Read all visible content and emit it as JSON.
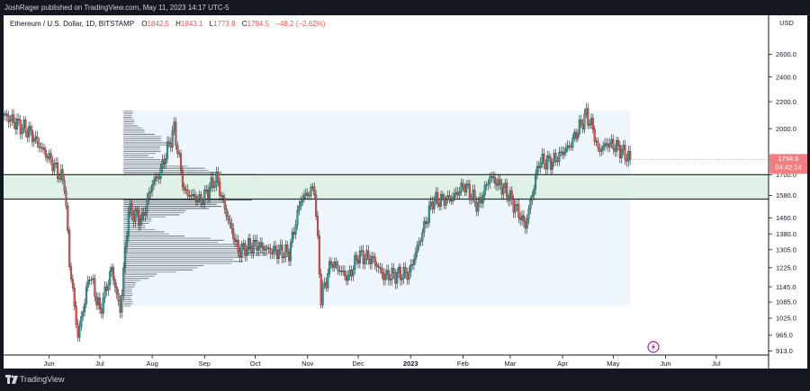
{
  "header": {
    "publisher_line": "JoshRager published on TradingView.com, May 11, 2023 14:17 UTC-5"
  },
  "footer": {
    "brand": "TradingView"
  },
  "legend": {
    "symbol": "Ethereum / U.S. Dollar, 1D, BITSTAMP",
    "open_label": "O",
    "open": "1842.5",
    "high_label": "H",
    "high": "1843.1",
    "low_label": "L",
    "low": "1773.8",
    "close_label": "C",
    "close": "1794.5",
    "change": "−48.2 (−2.62%)"
  },
  "price_badge": {
    "price": "1794.5",
    "countdown": "04:42:14"
  },
  "colors": {
    "up": "#26a69a",
    "down": "#ef5350",
    "zone_fill": "#e0f2e7",
    "zone_line": "#2b3a2f",
    "range_fill": "#eef6fc",
    "badge": "#f77c80",
    "lightning": "#9c27b0"
  },
  "icons": {
    "lightning": "lightning-icon",
    "logo": "tradingview-logo-icon"
  },
  "chart_data": {
    "type": "candlestick",
    "currency": "USD",
    "y_ticks": [
      "2600.0",
      "2400.0",
      "2200.0",
      "2000.0",
      "1700.0",
      "1580.0",
      "1460.0",
      "1380.0",
      "1305.0",
      "1225.0",
      "1145.0",
      "1085.0",
      "1025.0",
      "965.0",
      "913.0"
    ],
    "y_tick_values": [
      2600,
      2400,
      2200,
      2000,
      1700,
      1580,
      1460,
      1380,
      1305,
      1225,
      1145,
      1085,
      1025,
      965,
      913
    ],
    "x_ticks": [
      "Jun",
      "Jul",
      "Aug",
      "Sep",
      "Oct",
      "Nov",
      "Dec",
      "2023",
      "Feb",
      "Mar",
      "Apr",
      "May",
      "Jun",
      "Jul"
    ],
    "x_tick_dates": [
      "2022-06-01",
      "2022-07-01",
      "2022-08-01",
      "2022-09-01",
      "2022-10-01",
      "2022-11-01",
      "2022-12-01",
      "2023-01-01",
      "2023-02-01",
      "2023-03-01",
      "2023-04-01",
      "2023-05-01",
      "2023-06-01",
      "2023-07-01"
    ],
    "x_range": [
      "2022-05-05",
      "2023-08-01"
    ],
    "y_scale": "log",
    "support_zone": [
      1560,
      1700
    ],
    "volume_profile_range": {
      "from": "2022-07-15",
      "to": "2023-05-11",
      "low": 1070,
      "high": 2130
    },
    "last_price": 1794.5,
    "anchors": [
      {
        "date": "2022-05-05",
        "price": 2100
      },
      {
        "date": "2022-05-20",
        "price": 1980
      },
      {
        "date": "2022-06-01",
        "price": 1800
      },
      {
        "date": "2022-06-10",
        "price": 1650
      },
      {
        "date": "2022-06-13",
        "price": 1250
      },
      {
        "date": "2022-06-18",
        "price": 960
      },
      {
        "date": "2022-06-25",
        "price": 1200
      },
      {
        "date": "2022-07-01",
        "price": 1050
      },
      {
        "date": "2022-07-08",
        "price": 1220
      },
      {
        "date": "2022-07-13",
        "price": 1050
      },
      {
        "date": "2022-07-18",
        "price": 1500
      },
      {
        "date": "2022-07-26",
        "price": 1450
      },
      {
        "date": "2022-08-01",
        "price": 1650
      },
      {
        "date": "2022-08-05",
        "price": 1700
      },
      {
        "date": "2022-08-14",
        "price": 2000
      },
      {
        "date": "2022-08-20",
        "price": 1600
      },
      {
        "date": "2022-08-30",
        "price": 1550
      },
      {
        "date": "2022-09-08",
        "price": 1680
      },
      {
        "date": "2022-09-15",
        "price": 1450
      },
      {
        "date": "2022-09-21",
        "price": 1300
      },
      {
        "date": "2022-10-01",
        "price": 1330
      },
      {
        "date": "2022-10-10",
        "price": 1300
      },
      {
        "date": "2022-10-21",
        "price": 1290
      },
      {
        "date": "2022-10-28",
        "price": 1560
      },
      {
        "date": "2022-11-05",
        "price": 1620
      },
      {
        "date": "2022-11-09",
        "price": 1100
      },
      {
        "date": "2022-11-15",
        "price": 1250
      },
      {
        "date": "2022-11-25",
        "price": 1180
      },
      {
        "date": "2022-12-01",
        "price": 1280
      },
      {
        "date": "2022-12-10",
        "price": 1260
      },
      {
        "date": "2022-12-16",
        "price": 1190
      },
      {
        "date": "2022-12-31",
        "price": 1200
      },
      {
        "date": "2023-01-14",
        "price": 1550
      },
      {
        "date": "2023-01-25",
        "price": 1560
      },
      {
        "date": "2023-02-02",
        "price": 1640
      },
      {
        "date": "2023-02-10",
        "price": 1520
      },
      {
        "date": "2023-02-17",
        "price": 1690
      },
      {
        "date": "2023-02-27",
        "price": 1600
      },
      {
        "date": "2023-03-10",
        "price": 1420
      },
      {
        "date": "2023-03-18",
        "price": 1780
      },
      {
        "date": "2023-03-26",
        "price": 1780
      },
      {
        "date": "2023-04-05",
        "price": 1880
      },
      {
        "date": "2023-04-15",
        "price": 2100
      },
      {
        "date": "2023-04-19",
        "price": 2000
      },
      {
        "date": "2023-04-22",
        "price": 1850
      },
      {
        "date": "2023-04-28",
        "price": 1900
      },
      {
        "date": "2023-05-04",
        "price": 1870
      },
      {
        "date": "2023-05-11",
        "price": 1794.5
      }
    ]
  }
}
